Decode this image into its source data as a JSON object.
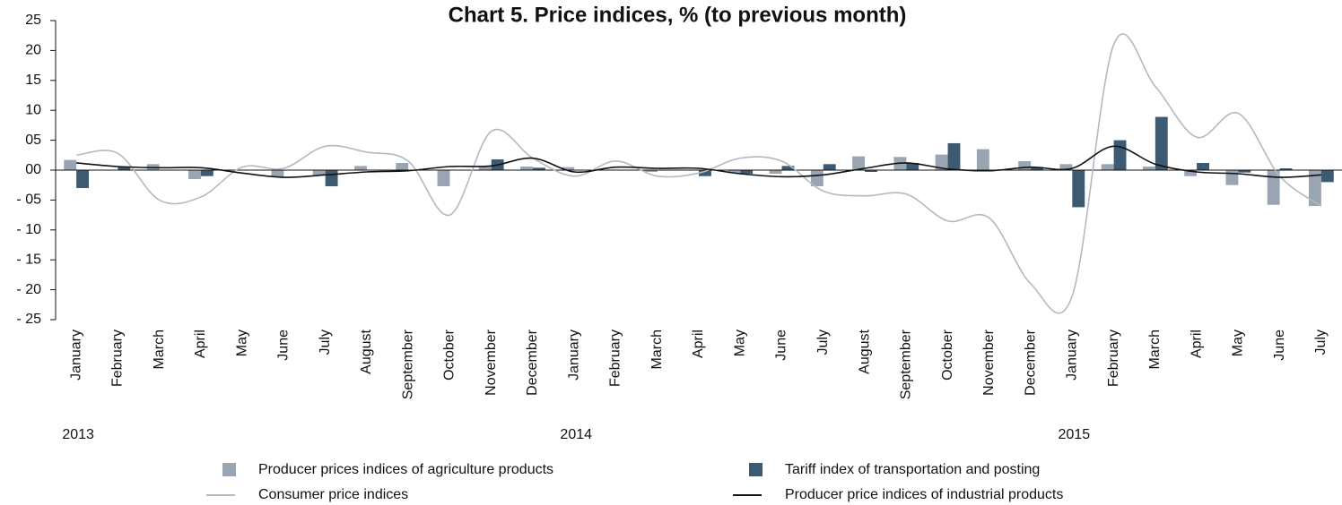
{
  "chart_data": {
    "type": "bar",
    "title": "Chart 5. Price indices, % (to previous month)",
    "categories": [
      "January",
      "February",
      "March",
      "April",
      "May",
      "June",
      "July",
      "August",
      "September",
      "October",
      "November",
      "December",
      "January",
      "February",
      "March",
      "April",
      "May",
      "June",
      "July",
      "August",
      "September",
      "October",
      "November",
      "December",
      "January",
      "February",
      "March",
      "April",
      "May",
      "June",
      "July"
    ],
    "years": [
      "2013",
      "2014",
      "2015"
    ],
    "ylim": [
      -25,
      25
    ],
    "yticks": [
      25,
      20,
      15,
      10,
      {
        "value": 5,
        "label": "05"
      },
      {
        "value": 0,
        "label": "00"
      },
      {
        "value": -5,
        "label": "- 05"
      },
      {
        "value": -10,
        "label": "- 10"
      },
      {
        "value": -15,
        "label": "- 15"
      },
      {
        "value": -20,
        "label": "- 20"
      },
      {
        "value": -25,
        "label": "- 25"
      }
    ],
    "series": [
      {
        "name": "Producer prices indices of agriculture products",
        "kind": "bar",
        "color": "#9aa5b4",
        "values": [
          1.7,
          0,
          1.0,
          -1.5,
          0,
          -1.2,
          -0.8,
          0.7,
          1.2,
          -2.7,
          0.7,
          0.6,
          0.5,
          0,
          -0.3,
          0,
          -0.5,
          -0.6,
          -2.7,
          2.3,
          2.2,
          2.6,
          3.5,
          1.5,
          1.0,
          1.0,
          0.6,
          -1.0,
          -2.5,
          -5.8,
          -6.0
        ]
      },
      {
        "name": "Tariff index of transportation and posting",
        "kind": "bar",
        "color": "#3d5a73",
        "values": [
          -3.0,
          0.6,
          0,
          -1.0,
          0,
          0,
          -2.7,
          0,
          0,
          0,
          1.8,
          0.4,
          0,
          0,
          0,
          -1.0,
          -0.6,
          0.7,
          1.0,
          -0.3,
          1.2,
          4.5,
          0,
          0.5,
          -6.2,
          5.0,
          8.9,
          1.2,
          -0.4,
          0.3,
          -2.0
        ]
      },
      {
        "name": "Consumer price indices",
        "kind": "line",
        "color": "#b4b9c0",
        "values": [
          2.5,
          2.8,
          -5.0,
          -4.5,
          0.5,
          0.3,
          4.0,
          3.0,
          1.5,
          -7.5,
          6.5,
          2.0,
          -1.0,
          1.5,
          -1.0,
          -0.5,
          2.0,
          1.5,
          -3.5,
          -4.3,
          -4.0,
          -8.5,
          -8.0,
          -19.0,
          -21.0,
          21.0,
          14.0,
          5.5,
          9.5,
          -1.0,
          -6.0
        ]
      },
      {
        "name": "Producer price indices of industrial products",
        "kind": "line",
        "color": "#111111",
        "values": [
          1.2,
          0.6,
          0.4,
          0.4,
          -0.5,
          -1.2,
          -0.8,
          -0.3,
          -0.1,
          0.6,
          0.7,
          2.0,
          -0.3,
          0.5,
          0.3,
          0.3,
          -0.6,
          -1.1,
          -0.8,
          0.3,
          1.2,
          0.2,
          -0.1,
          0.5,
          0.3,
          4.0,
          1.0,
          -0.3,
          -0.6,
          -1.2,
          -0.8
        ]
      }
    ]
  }
}
